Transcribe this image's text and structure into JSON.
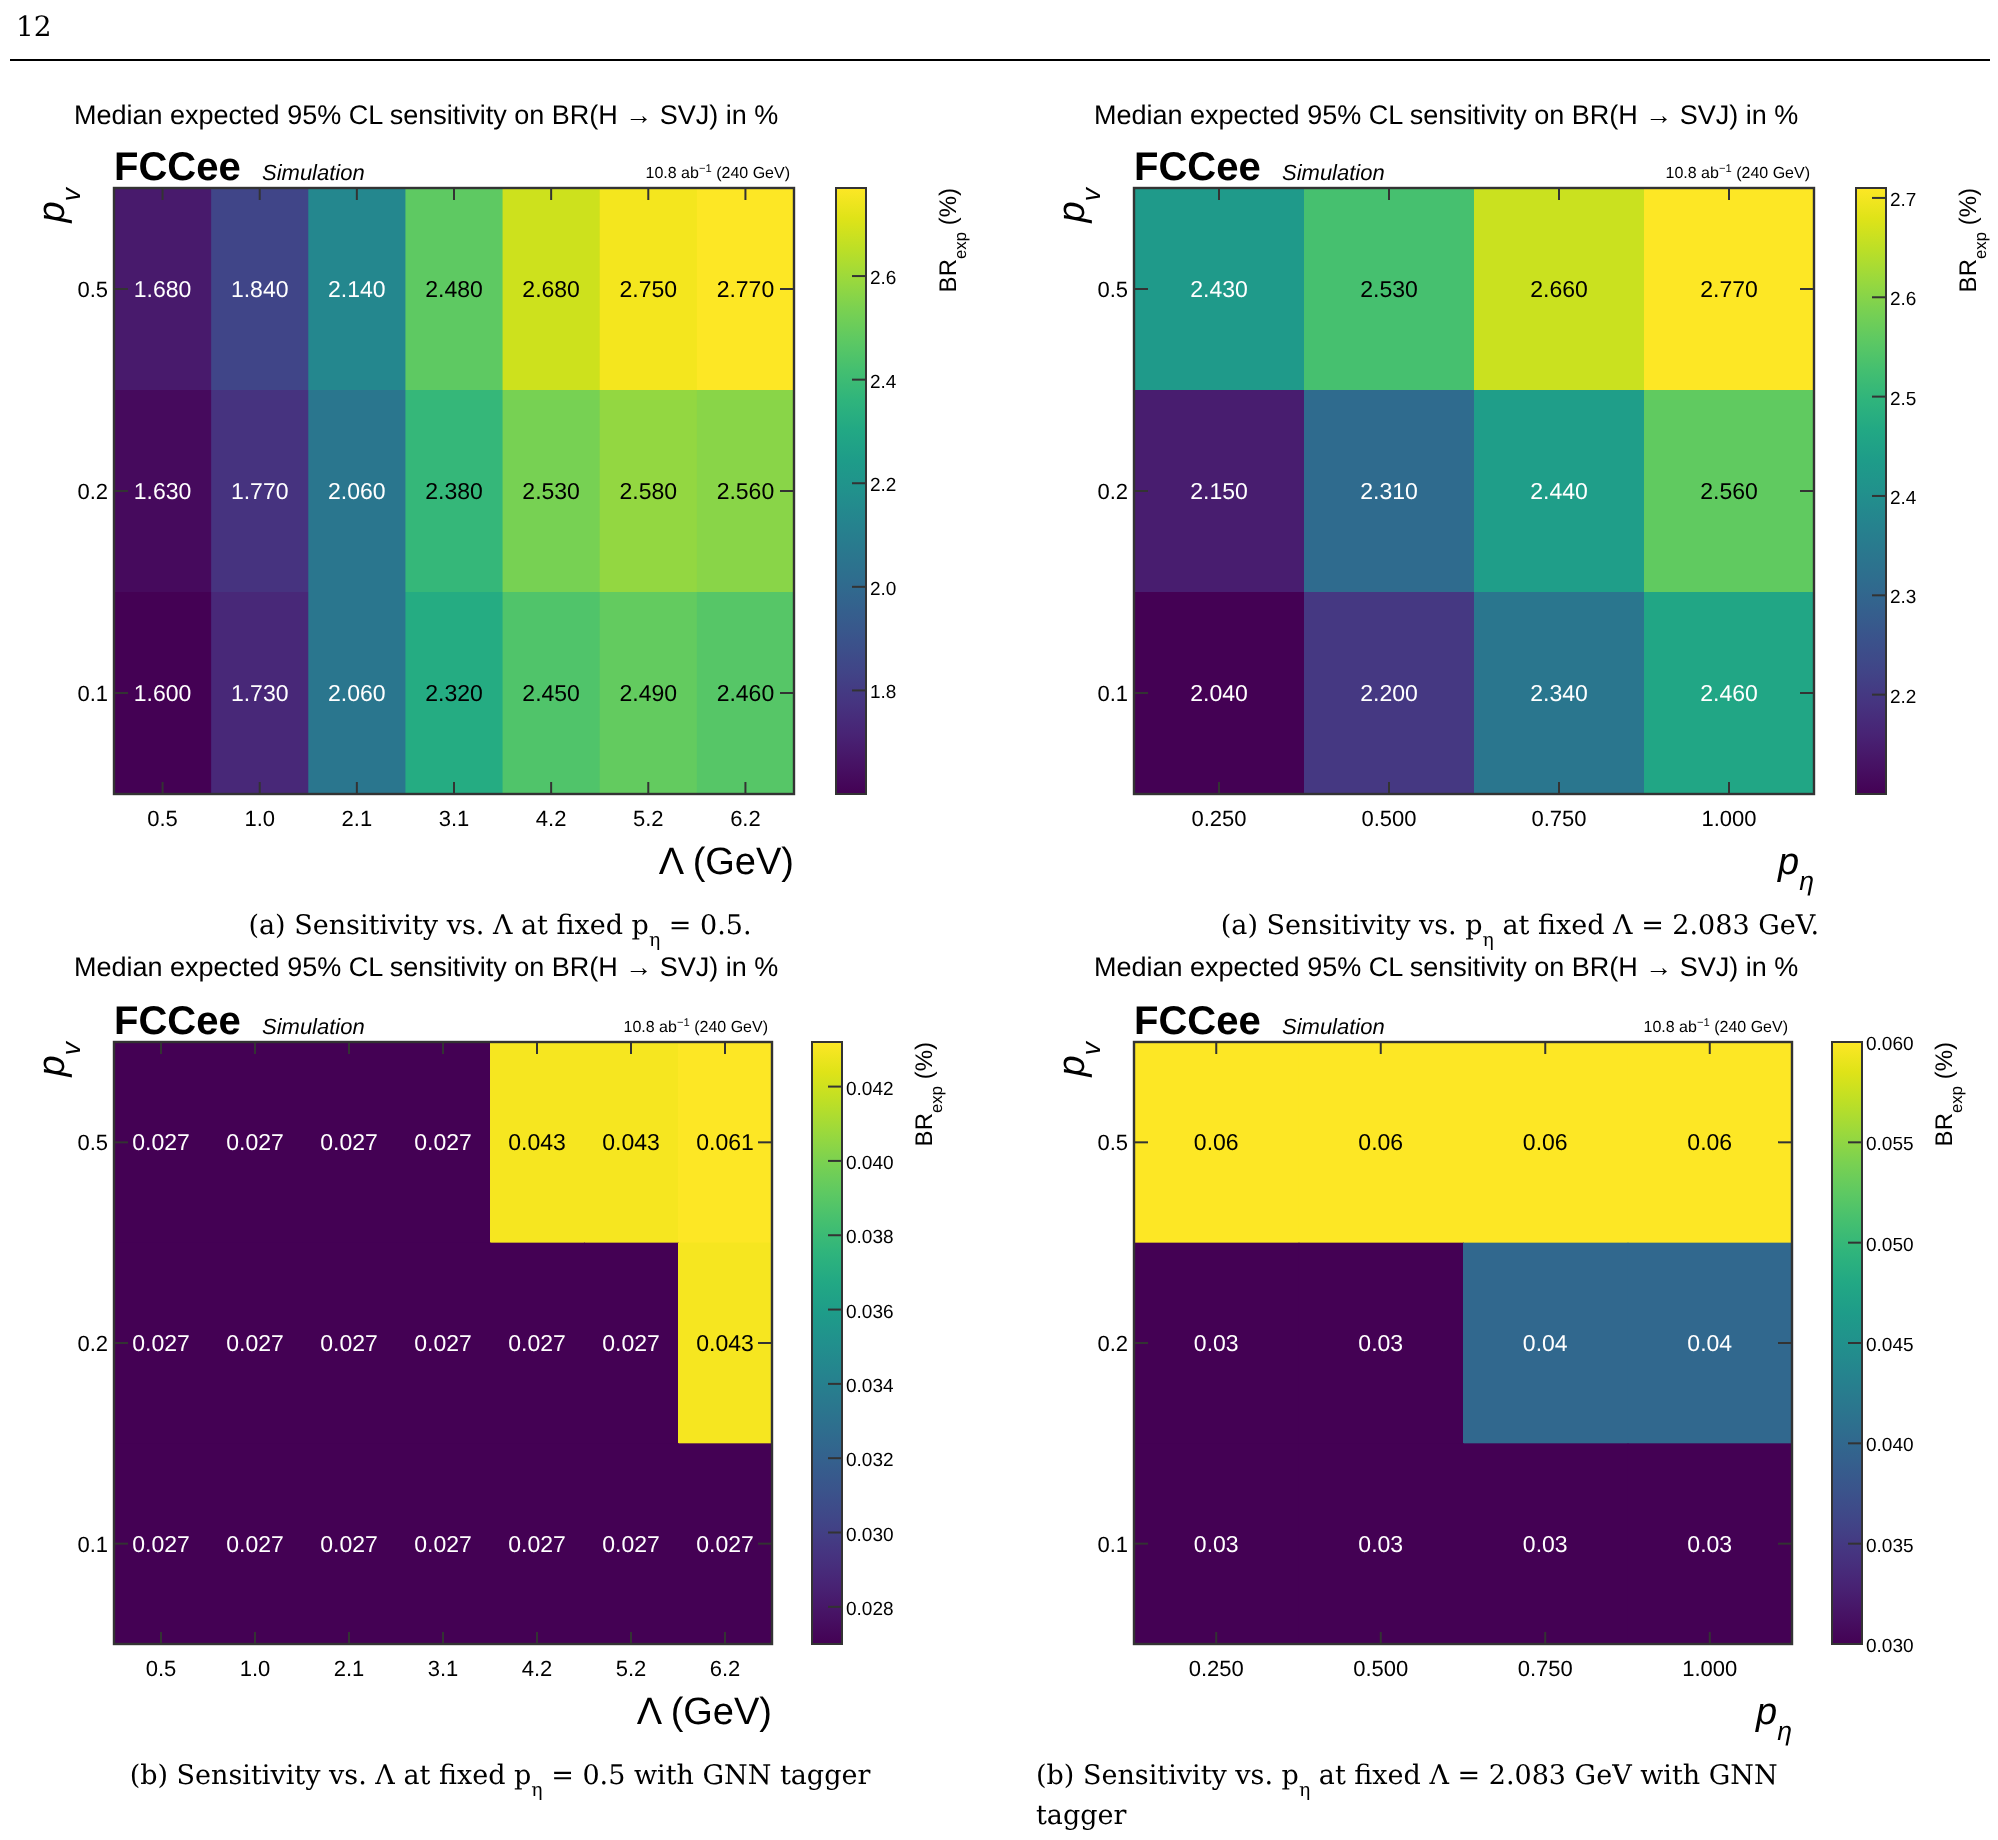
{
  "chart_data": [
    {
      "type": "heatmap",
      "title": "Median expected 95% CL sensitivity on BR(H → SVJ) in %",
      "xlabel": "Λ (GeV)",
      "ylabel": "p$_{v}$",
      "clabel": "BR$_{exp}$ (%)",
      "categories": [
        "0.5",
        "1.0",
        "2.1",
        "3.1",
        "4.2",
        "5.2",
        "6.2"
      ],
      "y_categories": [
        "0.5",
        "0.2",
        "0.1"
      ],
      "cells": [
        [
          1.68,
          1.84,
          2.14,
          2.48,
          2.68,
          2.75,
          2.77
        ],
        [
          1.63,
          1.77,
          2.06,
          2.38,
          2.53,
          2.58,
          2.56
        ],
        [
          1.6,
          1.73,
          2.06,
          2.32,
          2.45,
          2.49,
          2.46
        ]
      ],
      "cell_labels": [
        [
          "1.680",
          "1.840",
          "2.140",
          "2.480",
          "2.680",
          "2.750",
          "2.770"
        ],
        [
          "1.630",
          "1.770",
          "2.060",
          "2.380",
          "2.530",
          "2.580",
          "2.560"
        ],
        [
          "1.600",
          "1.730",
          "2.060",
          "2.320",
          "2.450",
          "2.490",
          "2.460"
        ]
      ],
      "clim": [
        1.6,
        2.77
      ],
      "cticks": [
        {
          "value": 1.8,
          "label": "1.8"
        },
        {
          "value": 2.0,
          "label": "2.0"
        },
        {
          "value": 2.2,
          "label": "2.2"
        },
        {
          "value": 2.4,
          "label": "2.4"
        },
        {
          "value": 2.6,
          "label": "2.6"
        }
      ],
      "annotations": [
        "FCCee",
        "Simulation",
        "10.8 ab$^{−1}$ (240 GeV)",
        "(a) Sensitivity vs. Λ at fixed p$_{η}$ = 0.5.",
        "12"
      ]
    },
    {
      "type": "heatmap",
      "title": "Median expected 95% CL sensitivity on BR(H → SVJ) in %",
      "xlabel": "p$_{η}$",
      "ylabel": "p$_{v}$",
      "clabel": "BR$_{exp}$ (%)",
      "categories": [
        "0.250",
        "0.500",
        "0.750",
        "1.000"
      ],
      "y_categories": [
        "0.5",
        "0.2",
        "0.1"
      ],
      "cells": [
        [
          2.43,
          2.53,
          2.66,
          2.77
        ],
        [
          2.15,
          2.31,
          2.44,
          2.56
        ],
        [
          2.04,
          2.2,
          2.34,
          2.46
        ]
      ],
      "cell_labels": [
        [
          "2.430",
          "2.530",
          "2.660",
          "2.770"
        ],
        [
          "2.150",
          "2.310",
          "2.440",
          "2.560"
        ],
        [
          "2.040",
          "2.200",
          "2.340",
          "2.460"
        ]
      ],
      "clim": [
        2.1,
        2.71
      ],
      "cticks": [
        2.2,
        2.3,
        2.4,
        2.5,
        2.6,
        2.7
      ],
      "annotations": [
        "FCCee",
        "Simulation",
        "10.8 ab$^{−1}$ (240 GeV)",
        "(a) Sensitivity vs. p$_{η}$ at fixed Λ = 2.083 GeV."
      ]
    },
    {
      "type": "heatmap",
      "title": "Median expected 95% CL sensitivity on BR(H → SVJ) in %",
      "xlabel": "Λ (GeV)",
      "ylabel": "p$_{v}$",
      "clabel": "BR$_{exp}$ (%)",
      "categories": [
        "0.5",
        "1.0",
        "2.1",
        "3.1",
        "4.2",
        "5.2",
        "6.2"
      ],
      "y_categories": [
        "0.5",
        "0.2",
        "0.1"
      ],
      "cells": [
        [
          0.027,
          0.027,
          0.027,
          0.027,
          0.043,
          0.043,
          0.061
        ],
        [
          0.027,
          0.027,
          0.027,
          0.027,
          0.027,
          0.027,
          0.043
        ],
        [
          0.027,
          0.027,
          0.027,
          0.027,
          0.027,
          0.027,
          0.027
        ]
      ],
      "clim": [
        0.027,
        0.0432
      ],
      "data_labels": true,
      "cticks": [
        {
          "value": 0.028,
          "label": "0.028"
        },
        {
          "value": 0.03,
          "label": "0.030"
        },
        {
          "value": 0.032,
          "label": "0.032"
        },
        {
          "value": 0.034,
          "label": "0.034"
        },
        {
          "value": 0.036,
          "label": "0.036"
        },
        {
          "value": 0.038,
          "label": "0.038"
        },
        {
          "value": 0.04,
          "label": "0.040"
        },
        {
          "value": 0.042,
          "label": "0.042"
        }
      ],
      "annotations": [
        "FCCee",
        "Simulation",
        "10.8 ab$^{−1}$ (240 GeV)",
        "(b) Sensitivity vs. Λ at fixed p$_{η}$ = 0.5 with GNN tagger"
      ]
    },
    {
      "type": "heatmap",
      "title": "Median expected 95% CL sensitivity on BR(H → SVJ) in %",
      "xlabel": "p$_{η}$",
      "ylabel": "p$_{v}$",
      "clabel": "BR$_{exp}$ (%)",
      "categories": [
        "0.250",
        "0.500",
        "0.750",
        "1.000"
      ],
      "y_categories": [
        "0.5",
        "0.2",
        "0.1"
      ],
      "cells": [
        [
          0.06,
          0.06,
          0.06,
          0.06
        ],
        [
          0.03,
          0.03,
          0.04,
          0.04
        ],
        [
          0.03,
          0.03,
          0.03,
          0.03
        ]
      ],
      "clim": [
        0.03,
        0.06
      ],
      "data_labels": true,
      "cticks": [
        {
          "value": 0.03,
          "label": "0.030"
        },
        {
          "value": 0.035,
          "label": "0.035"
        },
        {
          "value": 0.04,
          "label": "0.040"
        },
        {
          "value": 0.045,
          "label": "0.045"
        },
        {
          "value": 0.05,
          "label": "0.050"
        },
        {
          "value": 0.055,
          "label": "0.055"
        },
        {
          "value": 0.06,
          "label": "0.060"
        }
      ],
      "annotations": [
        "FCCee",
        "Simulation",
        "10.8 ab$^{−1}$ (240 GeV)",
        "(b) Sensitivity vs. p$_{η}$ at fixed Λ = 2.083 GeV with GNN tagger"
      ]
    }
  ]
}
